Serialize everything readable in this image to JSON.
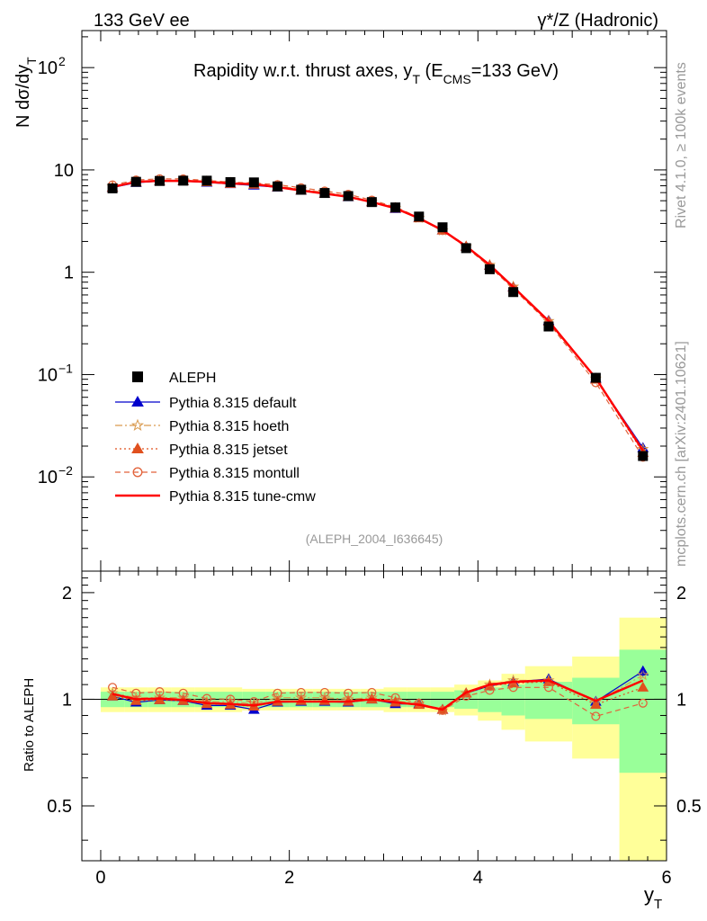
{
  "header": {
    "left": "133 GeV ee",
    "right": "γ*/Z (Hadronic)"
  },
  "side": {
    "rivet": "Rivet 4.1.0, ≥ 100k events",
    "mcplots": "mcplots.cern.ch [arXiv:2401.10621]"
  },
  "chart_data": {
    "type": "line",
    "title": "Rapidity w.r.t. thrust axes, y_T (E_CMS=133 GeV)",
    "title_parts": {
      "main": "Rapidity w.r.t. thrust axes, y",
      "sub_T": "T",
      "paren_open": " (E",
      "sub_cms": "CMS",
      "tail": "=133 GeV)"
    },
    "analysis_id": "(ALEPH_2004_I636645)",
    "xlabel": "y",
    "xlabel_sub": "T",
    "ylabel": "N  dσ/dy",
    "ylabel_sub": "T",
    "ratio_ylabel": "Ratio to ALEPH",
    "xlim": [
      -0.2,
      6.0
    ],
    "ylim": [
      0.0012,
      230
    ],
    "yscale": "log",
    "ratio_ylim": [
      0.35,
      2.3
    ],
    "x_ticks": [
      "0",
      "2",
      "4",
      "6"
    ],
    "y_ticks": [
      {
        "v": 0.01,
        "label": "10",
        "exp": "−2"
      },
      {
        "v": 0.1,
        "label": "10",
        "exp": "−1"
      },
      {
        "v": 1,
        "label": "1",
        "exp": ""
      },
      {
        "v": 10,
        "label": "10",
        "exp": ""
      },
      {
        "v": 100,
        "label": "10",
        "exp": "2"
      }
    ],
    "ratio_ticks": [
      "0.5",
      "1",
      "2"
    ],
    "x": [
      0.125,
      0.375,
      0.625,
      0.875,
      1.125,
      1.375,
      1.625,
      1.875,
      2.125,
      2.375,
      2.625,
      2.875,
      3.125,
      3.375,
      3.625,
      3.875,
      4.125,
      4.375,
      4.75,
      5.25,
      5.75
    ],
    "x_edges": [
      0,
      0.25,
      0.5,
      0.75,
      1.0,
      1.25,
      1.5,
      1.75,
      2.0,
      2.25,
      2.5,
      2.75,
      3.0,
      3.25,
      3.5,
      3.75,
      4.0,
      4.25,
      4.5,
      5.0,
      5.5,
      6.0
    ],
    "data_ref": {
      "name": "ALEPH",
      "values": [
        6.6,
        7.65,
        7.8,
        7.85,
        7.85,
        7.6,
        7.55,
        6.9,
        6.4,
        5.95,
        5.55,
        4.85,
        4.3,
        3.5,
        2.75,
        1.72,
        1.07,
        0.64,
        0.295,
        0.093,
        0.016
      ],
      "band_inner": [
        0.05,
        0.05,
        0.05,
        0.05,
        0.05,
        0.05,
        0.05,
        0.05,
        0.05,
        0.05,
        0.05,
        0.05,
        0.05,
        0.05,
        0.05,
        0.06,
        0.08,
        0.1,
        0.12,
        0.15,
        0.38
      ],
      "band_outer": [
        0.08,
        0.08,
        0.08,
        0.08,
        0.08,
        0.08,
        0.07,
        0.07,
        0.07,
        0.07,
        0.07,
        0.07,
        0.08,
        0.08,
        0.08,
        0.1,
        0.13,
        0.18,
        0.24,
        0.32,
        0.7
      ]
    },
    "series": [
      {
        "name": "Pythia 8.315 default",
        "color": "#0000cc",
        "dash": "",
        "marker": "triangle",
        "filled": true,
        "ratio": [
          1.02,
          0.98,
          0.995,
          0.99,
          0.96,
          0.96,
          0.935,
          0.98,
          0.985,
          0.985,
          0.98,
          1.0,
          0.97,
          0.97,
          0.935,
          1.04,
          1.09,
          1.12,
          1.14,
          0.985,
          1.2
        ]
      },
      {
        "name": "Pythia 8.315 hoeth",
        "color": "#d99a4e",
        "dash": "8,3,2,3",
        "marker": "star",
        "filled": false,
        "ratio": [
          1.04,
          1.01,
          1.01,
          1.01,
          0.985,
          0.985,
          0.97,
          1.01,
          1.01,
          1.01,
          1.0,
          1.01,
          0.99,
          0.97,
          0.93,
          1.04,
          1.1,
          1.13,
          1.13,
          0.98,
          1.17
        ]
      },
      {
        "name": "Pythia 8.315 jetset",
        "color": "#e0501e",
        "dash": "2,3",
        "marker": "triangle",
        "filled": true,
        "ratio": [
          1.02,
          0.99,
          0.995,
          0.99,
          0.97,
          0.965,
          0.955,
          0.985,
          0.99,
          0.99,
          0.985,
          1.0,
          0.98,
          0.965,
          0.935,
          1.04,
          1.09,
          1.11,
          1.12,
          0.965,
          1.08
        ]
      },
      {
        "name": "Pythia 8.315 montull",
        "color": "#e2623a",
        "dash": "6,4",
        "marker": "circle",
        "filled": false,
        "ratio": [
          1.08,
          1.04,
          1.05,
          1.04,
          1.005,
          1.0,
          0.985,
          1.04,
          1.045,
          1.045,
          1.04,
          1.045,
          1.01,
          0.975,
          0.93,
          1.02,
          1.06,
          1.08,
          1.08,
          0.895,
          0.975
        ]
      },
      {
        "name": "Pythia 8.315 tune-cmw",
        "color": "#ff0000",
        "dash": "",
        "marker": "none",
        "filled": false,
        "ratio": [
          1.035,
          1.0,
          1.005,
          0.995,
          0.975,
          0.97,
          0.96,
          0.985,
          0.985,
          0.985,
          0.985,
          1.0,
          0.98,
          0.965,
          0.935,
          1.045,
          1.1,
          1.12,
          1.13,
          0.99,
          1.13
        ]
      }
    ],
    "legend_position": "lower-left",
    "legend_ref_label": "ALEPH"
  }
}
